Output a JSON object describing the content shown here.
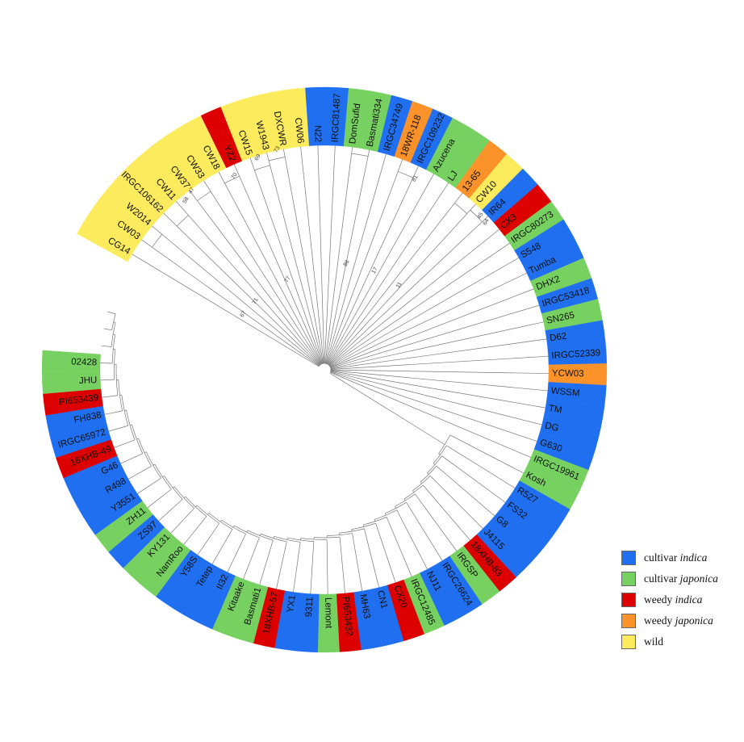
{
  "categories": {
    "ci": {
      "label": "cultivar",
      "italic": "indica",
      "color": "#1f6ff0"
    },
    "cj": {
      "label": "cultivar",
      "italic": "japonica",
      "color": "#77d160"
    },
    "wi": {
      "label": "weedy",
      "italic": "indica",
      "color": "#dd0000"
    },
    "wj": {
      "label": "weedy",
      "italic": "japonica",
      "color": "#fb922a"
    },
    "wild": {
      "label": "wild",
      "italic": "",
      "color": "#fdeb5e"
    }
  },
  "legend_order": [
    "ci",
    "cj",
    "wi",
    "wj",
    "wild"
  ],
  "leaves": [
    {
      "name": "CG14",
      "cat": "wild"
    },
    {
      "name": "CW03",
      "cat": "wild"
    },
    {
      "name": "W2014",
      "cat": "wild"
    },
    {
      "name": "IRGC106162",
      "cat": "wild"
    },
    {
      "name": "CW11",
      "cat": "wild"
    },
    {
      "name": "CW37",
      "cat": "wild"
    },
    {
      "name": "CW33",
      "cat": "wild"
    },
    {
      "name": "CW18",
      "cat": "wild"
    },
    {
      "name": "YZ2",
      "cat": "wi"
    },
    {
      "name": "CW15",
      "cat": "wild"
    },
    {
      "name": "W1943",
      "cat": "wild"
    },
    {
      "name": "DXCWR",
      "cat": "wild"
    },
    {
      "name": "CW06",
      "cat": "wild"
    },
    {
      "name": "N22",
      "cat": "ci"
    },
    {
      "name": "IRGC81487",
      "cat": "ci"
    },
    {
      "name": "DomSufid",
      "cat": "cj"
    },
    {
      "name": "Basmati334",
      "cat": "cj"
    },
    {
      "name": "IRGC34749",
      "cat": "ci"
    },
    {
      "name": "18WR-118",
      "cat": "wj"
    },
    {
      "name": "IRGC109232",
      "cat": "ci"
    },
    {
      "name": "Azucena",
      "cat": "cj"
    },
    {
      "name": "LJ",
      "cat": "cj"
    },
    {
      "name": "13-65",
      "cat": "wj"
    },
    {
      "name": "CW10",
      "cat": "wild"
    },
    {
      "name": "IR64",
      "cat": "ci"
    },
    {
      "name": "CX3",
      "cat": "wi"
    },
    {
      "name": "IRGC80273",
      "cat": "cj"
    },
    {
      "name": "S548",
      "cat": "ci"
    },
    {
      "name": "Tumba",
      "cat": "ci"
    },
    {
      "name": "DHX2",
      "cat": "cj"
    },
    {
      "name": "IRGC53418",
      "cat": "ci"
    },
    {
      "name": "SN265",
      "cat": "cj"
    },
    {
      "name": "D62",
      "cat": "ci"
    },
    {
      "name": "IRGC52339",
      "cat": "ci"
    },
    {
      "name": "YCW03",
      "cat": "wj"
    },
    {
      "name": "WSSM",
      "cat": "ci"
    },
    {
      "name": "TM",
      "cat": "ci"
    },
    {
      "name": "DG",
      "cat": "ci"
    },
    {
      "name": "G630",
      "cat": "ci"
    },
    {
      "name": "IRGC19961",
      "cat": "cj"
    },
    {
      "name": "Kosh",
      "cat": "cj"
    },
    {
      "name": "R527",
      "cat": "ci"
    },
    {
      "name": "FS32",
      "cat": "ci"
    },
    {
      "name": "G8",
      "cat": "ci"
    },
    {
      "name": "J4115",
      "cat": "ci"
    },
    {
      "name": "18XHB-83",
      "cat": "wi"
    },
    {
      "name": "IRGSP",
      "cat": "cj"
    },
    {
      "name": "IRGC26624",
      "cat": "ci"
    },
    {
      "name": "NJ11",
      "cat": "ci"
    },
    {
      "name": "IRGC12485",
      "cat": "cj"
    },
    {
      "name": "CX20",
      "cat": "wi"
    },
    {
      "name": "CN1",
      "cat": "ci"
    },
    {
      "name": "MH63",
      "cat": "ci"
    },
    {
      "name": "PI653432",
      "cat": "wi"
    },
    {
      "name": "Lemont",
      "cat": "cj"
    },
    {
      "name": "9311",
      "cat": "ci"
    },
    {
      "name": "YX1",
      "cat": "ci"
    },
    {
      "name": "18XHB-57",
      "cat": "wi"
    },
    {
      "name": "Basmati1",
      "cat": "cj"
    },
    {
      "name": "Kitaake",
      "cat": "cj"
    },
    {
      "name": "II32",
      "cat": "ci"
    },
    {
      "name": "Tetep",
      "cat": "ci"
    },
    {
      "name": "Y58S",
      "cat": "ci"
    },
    {
      "name": "NamRoo",
      "cat": "cj"
    },
    {
      "name": "KY131",
      "cat": "cj"
    },
    {
      "name": "ZS97",
      "cat": "ci"
    },
    {
      "name": "ZH11",
      "cat": "cj"
    },
    {
      "name": "Y3551",
      "cat": "ci"
    },
    {
      "name": "R498",
      "cat": "ci"
    },
    {
      "name": "G46",
      "cat": "ci"
    },
    {
      "name": "18XHB-49",
      "cat": "wi"
    },
    {
      "name": "IRGC65972",
      "cat": "ci"
    },
    {
      "name": "FH838",
      "cat": "ci"
    },
    {
      "name": "PI653439",
      "cat": "wi"
    },
    {
      "name": "JHU",
      "cat": "cj"
    },
    {
      "name": "02428",
      "cat": "cj"
    }
  ],
  "bootstrap": [
    "77",
    "71",
    "67",
    "86",
    "17",
    "11",
    "81",
    "45",
    "64",
    "70",
    "69",
    "73",
    "47",
    "58"
  ]
}
